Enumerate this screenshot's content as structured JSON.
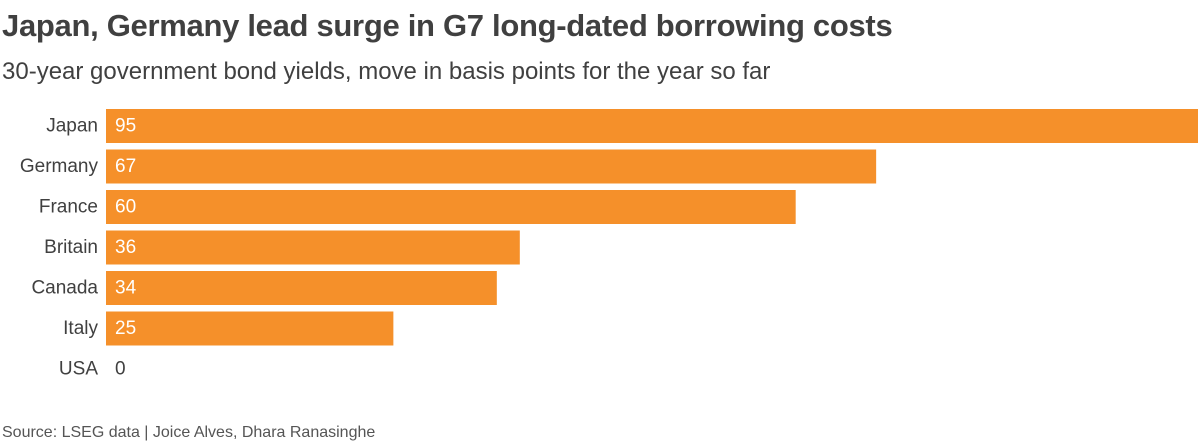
{
  "chart_data": {
    "type": "bar",
    "orientation": "horizontal",
    "title": "Japan, Germany lead surge in G7 long-dated borrowing costs",
    "subtitle": "30-year government bond yields, move in basis points for the year so far",
    "categories": [
      "Japan",
      "Germany",
      "France",
      "Britain",
      "Canada",
      "Italy",
      "USA"
    ],
    "values": [
      95,
      67,
      60,
      36,
      34,
      25,
      0
    ],
    "value_labels": [
      "95",
      "67",
      "60",
      "36",
      "34",
      "25",
      "0"
    ],
    "xlim": [
      0,
      95
    ],
    "grid": false,
    "legend": "none",
    "bar_color": "#f5902a",
    "source": "Source: LSEG data | Joice Alves, Dhara Ranasinghe"
  }
}
